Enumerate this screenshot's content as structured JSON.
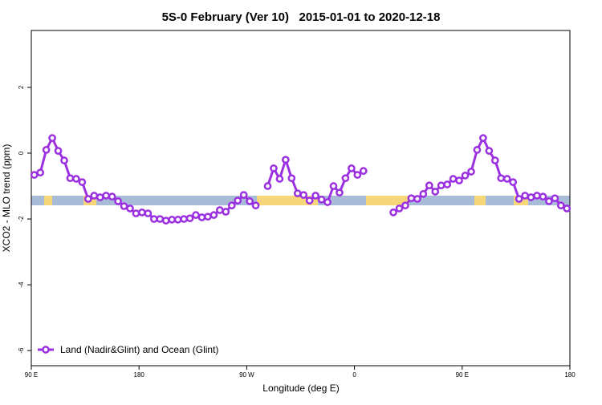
{
  "chart_data": {
    "type": "line",
    "title": "5S-0 February (Ver 10)   2015-01-01 to 2020-12-18",
    "x_label": "Longitude (deg E)",
    "y_label": "XCO2 - MLO trend (ppm)",
    "xlim": [
      90,
      540
    ],
    "ylim": [
      -6.46,
      3.73
    ],
    "xticks": [
      {
        "value": 90,
        "label": "90 E"
      },
      180,
      {
        "value": 270,
        "label": "90 W"
      },
      {
        "value": 360,
        "label": "0"
      },
      {
        "value": 450,
        "label": "90 E"
      },
      {
        "value": 540,
        "label": "180"
      }
    ],
    "yticks": [
      2,
      0,
      -2,
      -4,
      -6
    ],
    "legend": "bottomleft",
    "x": [
      92.5,
      97.5,
      102.5,
      107.5,
      112.5,
      117.5,
      122.5,
      127.5,
      132.5,
      137.5,
      142.5,
      147.5,
      152.5,
      157.5,
      162.5,
      167.5,
      172.5,
      177.5,
      182.5,
      187.5,
      192.5,
      197.5,
      202.5,
      207.5,
      212.5,
      217.5,
      222.5,
      227.5,
      232.5,
      237.5,
      242.5,
      247.5,
      252.5,
      257.5,
      262.5,
      267.5,
      272.5,
      277.5,
      282.5,
      287.5,
      292.5,
      297.5,
      302.5,
      307.5,
      312.5,
      317.5,
      322.5,
      327.5,
      332.5,
      337.5,
      342.5,
      347.5,
      352.5,
      357.5,
      362.5,
      367.5,
      372.5,
      377.5,
      382.5,
      387.5,
      392.5,
      397.5,
      402.5,
      407.5,
      412.5,
      417.5,
      422.5,
      427.5,
      432.5,
      437.5,
      442.5,
      447.5,
      452.5,
      457.5,
      462.5,
      467.5,
      472.5,
      477.5,
      482.5,
      487.5,
      492.5,
      497.5,
      502.5,
      507.5,
      512.5,
      517.5,
      522.5,
      527.5,
      532.5,
      537.5
    ],
    "series": [
      {
        "name": "Land (Nadir&Glint) and Ocean (Glint)",
        "color": "#9b30e0",
        "values": [
          -0.66,
          -0.59,
          0.1,
          0.46,
          0.07,
          -0.22,
          -0.76,
          -0.78,
          -0.88,
          -1.39,
          -1.29,
          -1.34,
          -1.29,
          -1.32,
          -1.46,
          -1.61,
          -1.68,
          -1.83,
          -1.8,
          -1.83,
          -2.0,
          -2.0,
          -2.05,
          -2.02,
          -2.02,
          -2.0,
          -1.98,
          -1.88,
          -1.95,
          -1.93,
          -1.88,
          -1.73,
          -1.78,
          -1.59,
          -1.44,
          -1.27,
          -1.46,
          -1.59,
          null,
          -1.0,
          -0.46,
          -0.78,
          -0.2,
          -0.76,
          -1.22,
          -1.27,
          -1.44,
          -1.29,
          -1.41,
          -1.49,
          -1.0,
          -1.2,
          -0.76,
          -0.46,
          -0.66,
          -0.54,
          null,
          null,
          null,
          null,
          -1.8,
          -1.68,
          -1.59,
          -1.37,
          -1.39,
          -1.24,
          -0.98,
          -1.17,
          -0.98,
          -0.95,
          -0.78,
          -0.83,
          -0.68,
          -0.56,
          0.1,
          0.46,
          0.07,
          -0.22,
          -0.76,
          -0.78,
          -0.88,
          -1.39,
          -1.29,
          -1.34,
          -1.29,
          -1.32,
          -1.46,
          -1.37,
          -1.59,
          -1.68
        ]
      }
    ]
  }
}
